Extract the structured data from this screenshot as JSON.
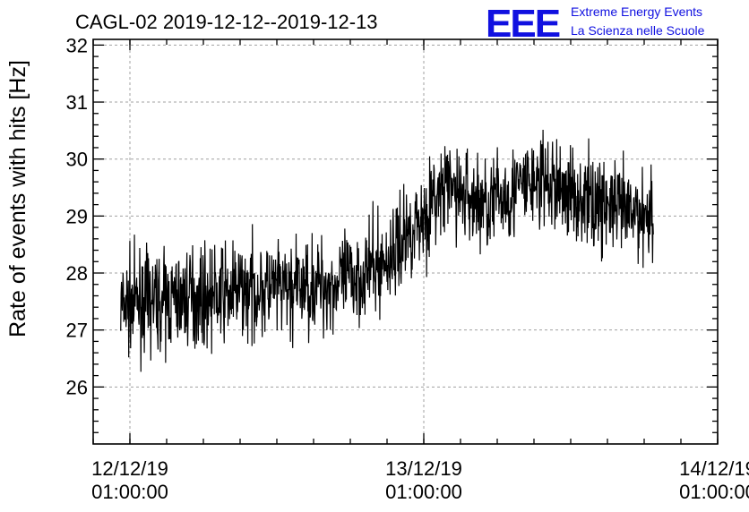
{
  "chart_data": {
    "type": "line",
    "title": "CAGL-02 2019-12-12--2019-12-13",
    "ylabel": "Rate of events with hits [Hz]",
    "xlabel": "",
    "ylim": [
      25,
      32.1
    ],
    "yticks": [
      26,
      27,
      28,
      29,
      30,
      31,
      32
    ],
    "xlim": [
      "2019-12-11T22:00:00",
      "2019-12-14T01:00:00"
    ],
    "xticks": [
      {
        "line1": "12/12/19",
        "line2": "01:00:00",
        "value": "2019-12-12T01:00:00"
      },
      {
        "line1": "13/12/19",
        "line2": "01:00:00",
        "value": "2019-12-13T01:00:00"
      },
      {
        "line1": "14/12/19",
        "line2": "01:00:00",
        "value": "2019-12-14T01:00:00"
      }
    ],
    "grid": true,
    "series": [
      {
        "color": "#000000",
        "x": [
          "2019-12-12T00:15:00",
          "2019-12-12T02:00:00",
          "2019-12-12T04:00:00",
          "2019-12-12T06:00:00",
          "2019-12-12T08:00:00",
          "2019-12-12T10:00:00",
          "2019-12-12T12:00:00",
          "2019-12-12T14:00:00",
          "2019-12-12T16:00:00",
          "2019-12-12T18:00:00",
          "2019-12-12T20:00:00",
          "2019-12-12T22:00:00",
          "2019-12-12T23:00:00",
          "2019-12-13T00:00:00",
          "2019-12-13T01:00:00",
          "2019-12-13T02:00:00",
          "2019-12-13T03:00:00",
          "2019-12-13T04:00:00",
          "2019-12-13T06:00:00",
          "2019-12-13T08:00:00",
          "2019-12-13T10:00:00",
          "2019-12-13T12:00:00",
          "2019-12-13T14:00:00",
          "2019-12-13T16:00:00",
          "2019-12-13T18:00:00",
          "2019-12-13T19:45:00"
        ],
        "y": [
          27.4,
          27.5,
          27.5,
          27.6,
          27.6,
          27.7,
          27.7,
          27.7,
          27.8,
          27.8,
          28.0,
          28.2,
          28.5,
          28.8,
          29.0,
          29.3,
          29.5,
          29.4,
          29.2,
          29.4,
          29.6,
          29.5,
          29.3,
          29.2,
          29.0,
          29.1
        ],
        "noise_band": 0.55
      }
    ]
  },
  "logo": {
    "mark": "EEE",
    "line1": "Extreme Energy Events",
    "line2": "La Scienza nelle Scuole"
  }
}
